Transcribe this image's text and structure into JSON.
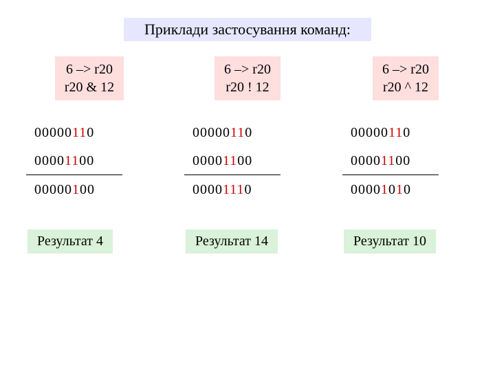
{
  "title": "Приклади застосування команд:",
  "columns": [
    {
      "op_line1": "6 –> r20",
      "op_line2": "r20 & 12",
      "bin1_plain": "00000",
      "bin1_red": "11",
      "bin1_tail": "0",
      "bin2_plain": "0000",
      "bin2_red": "11",
      "bin2_tail": "00",
      "res_plain_a": "00000",
      "res_red_a": "1",
      "res_plain_b": "00",
      "res_red_b": "",
      "res_tail": "",
      "result": "Результат 4"
    },
    {
      "op_line1": "6 –> r20",
      "op_line2": "r20 ! 12",
      "bin1_plain": "00000",
      "bin1_red": "11",
      "bin1_tail": "0",
      "bin2_plain": "0000",
      "bin2_red": "11",
      "bin2_tail": "00",
      "res_plain_a": "0000",
      "res_red_a": "111",
      "res_plain_b": "0",
      "res_red_b": "",
      "res_tail": "",
      "result": "Результат 14"
    },
    {
      "op_line1": "6 –> r20",
      "op_line2": "r20 ^ 12",
      "bin1_plain": "00000",
      "bin1_red": "11",
      "bin1_tail": "0",
      "bin2_plain": "0000",
      "bin2_red": "11",
      "bin2_tail": "00",
      "res_plain_a": "0000",
      "res_red_a": "1",
      "res_plain_b": "0",
      "res_red_b": "1",
      "res_tail": "0",
      "result": "Результат 10"
    }
  ],
  "colors": {
    "title_bg": "#e6e6ff",
    "op_bg": "#ffdede",
    "result_bg": "#d9f2d9",
    "red": "#cc0000",
    "background": "#ffffff"
  }
}
